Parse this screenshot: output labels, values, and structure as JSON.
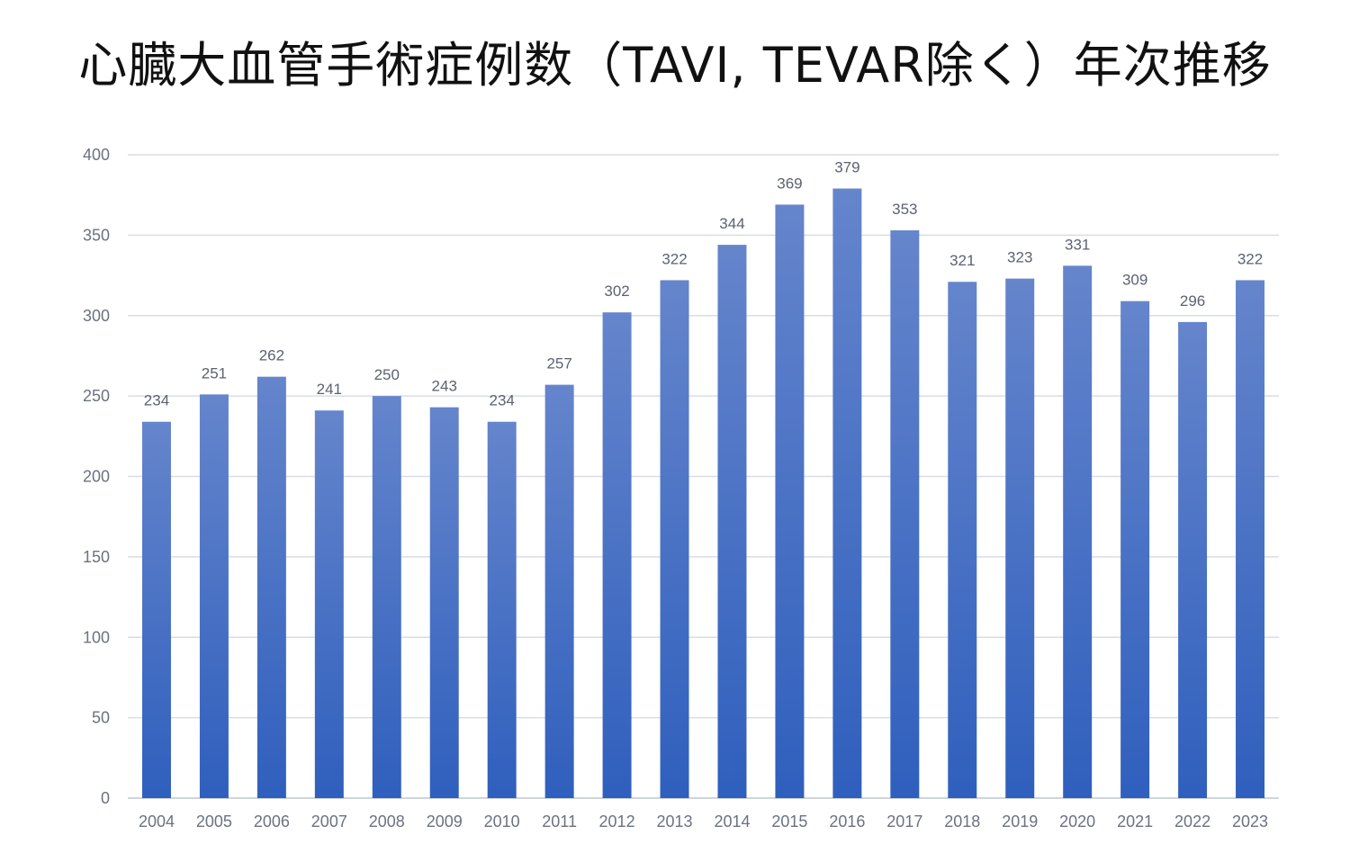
{
  "chart_data": {
    "type": "bar",
    "title": "心臓大血管手術症例数（TAVI, TEVAR除く）年次推移",
    "xlabel": "",
    "ylabel": "",
    "categories": [
      "2004",
      "2005",
      "2006",
      "2007",
      "2008",
      "2009",
      "2010",
      "2011",
      "2012",
      "2013",
      "2014",
      "2015",
      "2016",
      "2017",
      "2018",
      "2019",
      "2020",
      "2021",
      "2022",
      "2023"
    ],
    "values": [
      234,
      251,
      262,
      241,
      250,
      243,
      234,
      257,
      302,
      322,
      344,
      369,
      379,
      353,
      321,
      323,
      331,
      309,
      296,
      322
    ],
    "ylim": [
      0,
      400
    ],
    "yticks": [
      0,
      50,
      100,
      150,
      200,
      250,
      300,
      350,
      400
    ],
    "grid": true,
    "data_labels": true,
    "legend": "none",
    "colors": {
      "bar_top": "#6585cc",
      "bar_bottom": "#2f5fbd"
    }
  }
}
